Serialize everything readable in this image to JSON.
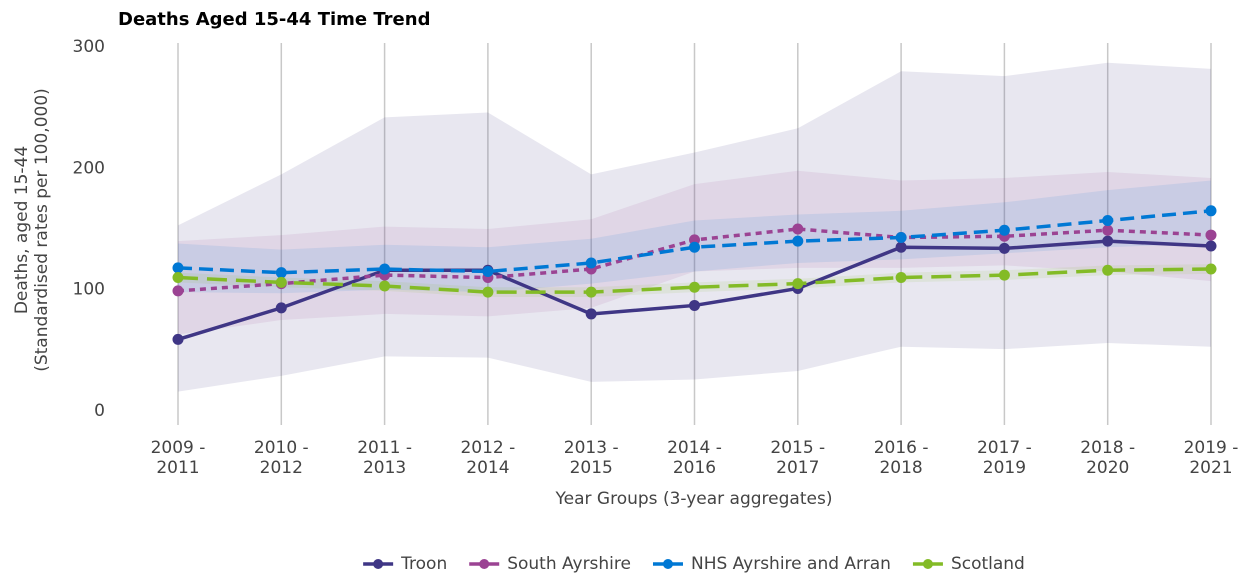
{
  "chart_data": {
    "type": "line",
    "title": "Deaths Aged 15-44 Time Trend",
    "xlabel": "Year Groups (3-year aggregates)",
    "ylabel": [
      "Deaths, aged 15-44",
      "(Standardised rates per 100,000)"
    ],
    "categories": [
      "2009 -\n2011",
      "2010 -\n2012",
      "2011 -\n2013",
      "2012 -\n2014",
      "2013 -\n2015",
      "2014 -\n2016",
      "2015 -\n2017",
      "2016 -\n2018",
      "2017 -\n2019",
      "2018 -\n2020",
      "2019 -\n2021"
    ],
    "ylim": [
      0,
      300
    ],
    "yticks": [
      0,
      100,
      200,
      300
    ],
    "grid": true,
    "legend": "bottom",
    "series": [
      {
        "name": "Troon",
        "color": "#3f3685",
        "dash": "solid",
        "values": [
          59,
          85,
          116,
          116,
          80,
          87,
          101,
          135,
          134,
          140,
          136
        ],
        "lower": [
          16,
          29,
          45,
          44,
          24,
          26,
          33,
          53,
          51,
          56,
          53
        ],
        "upper": [
          153,
          195,
          242,
          246,
          195,
          213,
          233,
          280,
          276,
          287,
          282
        ]
      },
      {
        "name": "South Ayrshire",
        "color": "#9b4393",
        "dash": "dotted",
        "values": [
          99,
          105,
          112,
          110,
          117,
          141,
          150,
          143,
          144,
          149,
          145
        ],
        "lower": [
          63,
          75,
          80,
          78,
          85,
          115,
          118,
          118,
          120,
          115,
          107
        ],
        "upper": [
          140,
          145,
          152,
          150,
          158,
          187,
          198,
          190,
          192,
          197,
          192
        ]
      },
      {
        "name": "NHS Ayrshire and Arran",
        "color": "#0078d4",
        "dash": "dashed",
        "values": [
          118,
          114,
          117,
          115,
          122,
          135,
          140,
          143,
          149,
          157,
          165
        ],
        "lower": [
          98,
          97,
          100,
          98,
          105,
          115,
          122,
          125,
          130,
          135,
          138
        ],
        "upper": [
          138,
          133,
          137,
          135,
          142,
          157,
          162,
          165,
          172,
          182,
          190
        ]
      },
      {
        "name": "Scotland",
        "color": "#83bb26",
        "dash": "longdash",
        "values": [
          110,
          106,
          103,
          98,
          98,
          102,
          105,
          110,
          112,
          116,
          117
        ],
        "lower": [
          106,
          102,
          99,
          94,
          94,
          98,
          101,
          106,
          108,
          112,
          113
        ],
        "upper": [
          114,
          110,
          107,
          102,
          102,
          106,
          109,
          114,
          116,
          120,
          121
        ]
      }
    ]
  }
}
